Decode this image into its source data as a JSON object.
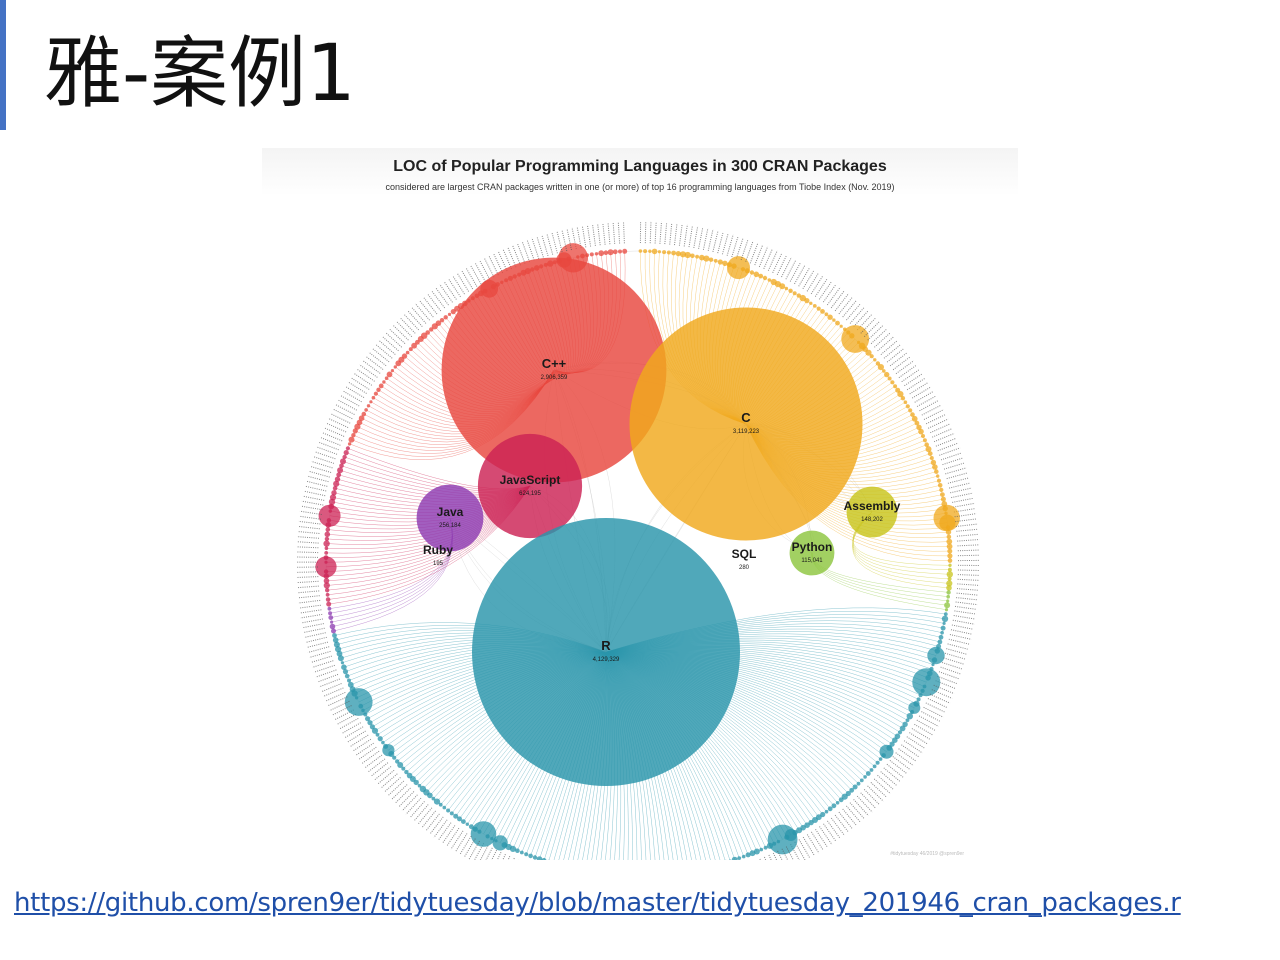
{
  "slide": {
    "title": "雅-案例1",
    "source_url": "https://github.com/spren9er/tidytuesday/blob/master/tidytuesday_201946_cran_packages.r"
  },
  "figure": {
    "title": "LOC of Popular Programming Languages in 300 CRAN Packages",
    "subtitle": "considered are largest CRAN packages written in one (or more) of top 16 programming languages from Tiobe Index (Nov. 2019)",
    "credit": "#tidytuesday 46/2019 @spren9er"
  },
  "colors": {
    "accent_bar": "#4472c4",
    "cpp": "#e8473e",
    "c": "#f0a81c",
    "javascript": "#cc2254",
    "java": "#8e3bb1",
    "assembly": "#c8c41c",
    "python": "#8dc63f",
    "r": "#2a95ab",
    "link": "#1f4fa8"
  },
  "chart_data": {
    "type": "bubble-network",
    "title": "LOC of Popular Programming Languages in 300 CRAN Packages",
    "subtitle": "considered are largest CRAN packages written in one (or more) of top 16 programming languages from Tiobe Index (Nov. 2019)",
    "series": [
      {
        "name": "C++",
        "value": 2906359,
        "value_label": "2,906,359",
        "color": "#e8473e"
      },
      {
        "name": "C",
        "value": 3119223,
        "value_label": "3,119,223",
        "color": "#f0a81c"
      },
      {
        "name": "JavaScript",
        "value": 624195,
        "value_label": "624,195",
        "color": "#cc2254"
      },
      {
        "name": "Java",
        "value": 256184,
        "value_label": "256,184",
        "color": "#8e3bb1"
      },
      {
        "name": "Ruby",
        "value": 195,
        "value_label": "195",
        "color": "#555555"
      },
      {
        "name": "SQL",
        "value": 280,
        "value_label": "280",
        "color": "#555555"
      },
      {
        "name": "Python",
        "value": 115041,
        "value_label": "115,041",
        "color": "#8dc63f"
      },
      {
        "name": "Assembly",
        "value": 148202,
        "value_label": "148,202",
        "color": "#c8c41c"
      },
      {
        "name": "R",
        "value": 4129329,
        "value_label": "4,129,329",
        "color": "#2a95ab"
      }
    ],
    "outer_packages_count": 300
  }
}
